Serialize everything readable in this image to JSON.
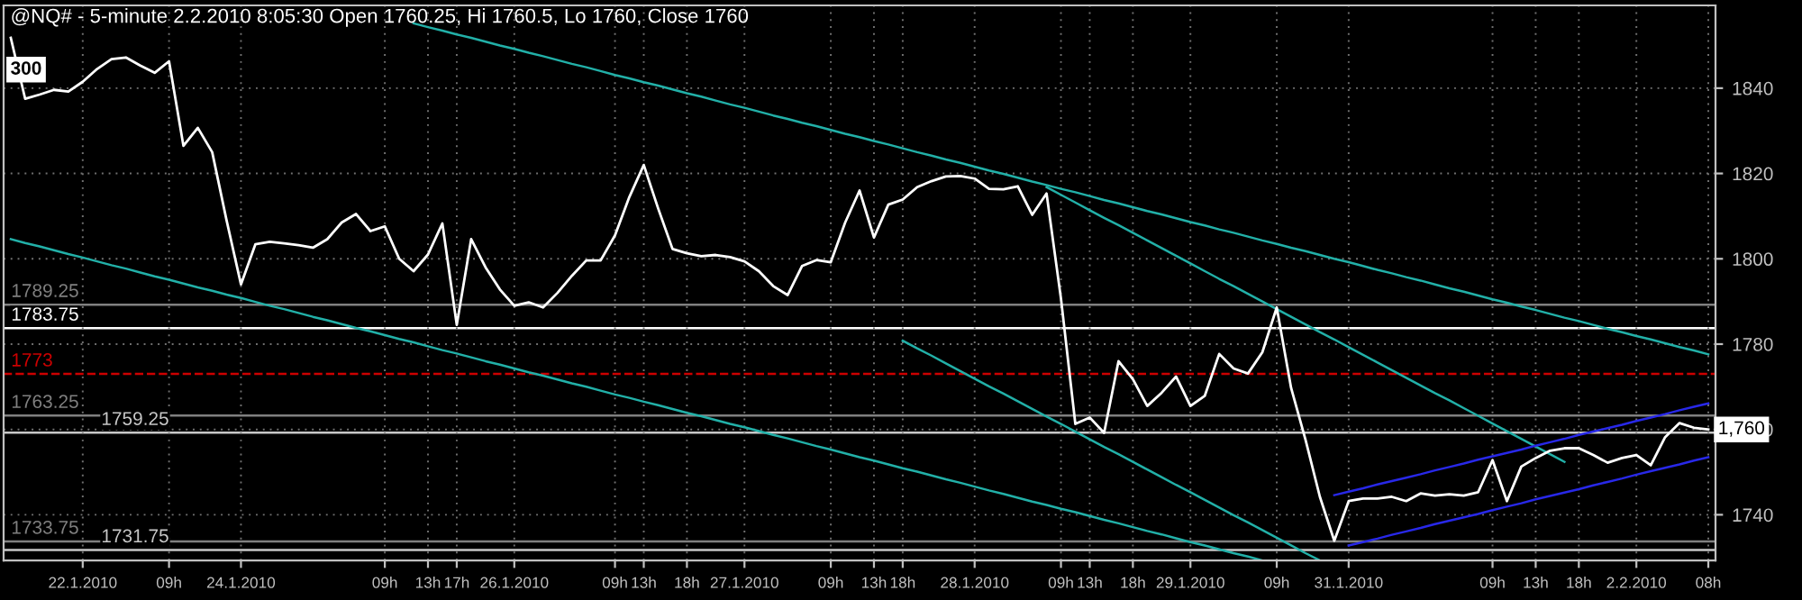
{
  "chart_data": {
    "type": "line",
    "title": "@NQ# - 5-minute 2.2.2010 8:05:30 Open 1760.25, Hi 1760.5, Lo 1760, Close 1760",
    "annotations": [
      "300",
      {
        "text": "1,760",
        "y": 1760
      }
    ],
    "categories": [
      null,
      null,
      null,
      null,
      null,
      "22.1.2010",
      null,
      null,
      null,
      null,
      null,
      "09h",
      null,
      null,
      null,
      null,
      "24.1.2010",
      null,
      null,
      null,
      null,
      null,
      null,
      null,
      null,
      null,
      "09h",
      null,
      null,
      "13h",
      null,
      "17h",
      null,
      null,
      null,
      "26.1.2010",
      null,
      null,
      null,
      null,
      null,
      null,
      "09h",
      null,
      "13h",
      null,
      null,
      "18h",
      null,
      null,
      null,
      "27.1.2010",
      null,
      null,
      null,
      null,
      null,
      "09h",
      null,
      null,
      "13h",
      null,
      "18h",
      null,
      null,
      null,
      null,
      "28.1.2010",
      null,
      null,
      null,
      null,
      null,
      "09h",
      null,
      "13h",
      null,
      null,
      "18h",
      null,
      null,
      null,
      "29.1.2010",
      null,
      null,
      null,
      null,
      null,
      "09h",
      null,
      null,
      null,
      null,
      "31.1.2010",
      null,
      null,
      null,
      null,
      null,
      null,
      null,
      null,
      null,
      "09h",
      null,
      null,
      "13h",
      null,
      null,
      "18h",
      null,
      null,
      null,
      "2.2.2010",
      null,
      null,
      null,
      null,
      "08h"
    ],
    "series": [
      {
        "color": "#ffffff",
        "values": [
          1851.8,
          1837.5,
          1838.5,
          1839.6,
          1839.2,
          1841.5,
          1844.5,
          1846.8,
          1847.2,
          1845.3,
          1843.6,
          1846.3,
          1826.5,
          1830.7,
          1825,
          1809,
          1794,
          1803.4,
          1804,
          1803.6,
          1803.2,
          1802.6,
          1804.6,
          1808.5,
          1810.5,
          1806.5,
          1807.6,
          1800,
          1797.1,
          1801,
          1808.3,
          1784.5,
          1804.6,
          1798,
          1792.8,
          1789,
          1789.8,
          1788.6,
          1792,
          1796,
          1799.6,
          1799.6,
          1805.5,
          1814.5,
          1822,
          1811.8,
          1802.3,
          1801.3,
          1800.6,
          1800.9,
          1800.4,
          1799.4,
          1797.1,
          1793.6,
          1791.5,
          1798.3,
          1799.7,
          1799.2,
          1808.5,
          1816,
          1805,
          1812.7,
          1813.9,
          1816.8,
          1818.2,
          1819.3,
          1819.4,
          1818.8,
          1816.4,
          1816.3,
          1817,
          1810.3,
          1815.3,
          1790.7,
          1761.3,
          1762.8,
          1759.2,
          1776,
          1771.8,
          1765.5,
          1768.6,
          1772.4,
          1765.5,
          1767.9,
          1777.7,
          1774.3,
          1773.1,
          1778.1,
          1788.6,
          1769.7,
          1757.6,
          1744.2,
          1733.9,
          1743.2,
          1743.8,
          1743.8,
          1744.2,
          1743.2,
          1745,
          1744.5,
          1744.8,
          1744.5,
          1745.3,
          1752.8,
          1743.2,
          1751.3,
          1753.3,
          1755,
          1755.6,
          1755.6,
          1754,
          1752.2,
          1753.3,
          1754,
          1751.6,
          1758.2,
          1761.5,
          1760.4,
          1760
        ]
      },
      {
        "color": "#22b0a8",
        "values": [
          null,
          null,
          null,
          null,
          null,
          null,
          null,
          null,
          null,
          null,
          null,
          null,
          null,
          null,
          null,
          null,
          null,
          null,
          null,
          null,
          null,
          null,
          null,
          null,
          null,
          null,
          null,
          null,
          1855.2,
          1854.3,
          1853.5,
          1852.6,
          1851.8,
          1850.9,
          1850.0,
          1849.2,
          1848.3,
          1847.5,
          1846.6,
          1845.7,
          1844.9,
          1844.0,
          1843.1,
          1842.3,
          1841.4,
          1840.6,
          1839.7,
          1838.8,
          1838.0,
          1837.1,
          1836.2,
          1835.4,
          1834.5,
          1833.6,
          1832.8,
          1831.9,
          1831.1,
          1830.2,
          1829.3,
          1828.5,
          1827.6,
          1826.8,
          1825.9,
          1825.0,
          1824.2,
          1823.3,
          1822.5,
          1821.6,
          1820.7,
          1819.9,
          1819.0,
          1818.1,
          1817.3,
          1816.4,
          1815.6,
          1814.7,
          1813.8,
          1813.0,
          1812.1,
          1811.2,
          1810.4,
          1809.5,
          1808.6,
          1807.8,
          1806.9,
          1806.1,
          1805.2,
          1804.3,
          1803.5,
          1802.6,
          1801.8,
          1800.9,
          1800.0,
          1799.2,
          1798.3,
          1797.4,
          1796.6,
          1795.7,
          1794.9,
          1794.0,
          1793.1,
          1792.3,
          1791.4,
          1790.5,
          1789.7,
          1788.8,
          1788.0,
          1787.1,
          1786.2,
          1785.4,
          1784.5,
          1783.6,
          1782.8,
          1781.9,
          1781.1,
          1780.2,
          1779.3,
          1778.5,
          1777.6
        ]
      },
      {
        "color": "#22b0a8",
        "values": [
          1804.6,
          1803.7,
          1802.9,
          1802.0,
          1801.1,
          1800.3,
          1799.4,
          1798.5,
          1797.7,
          1796.8,
          1795.9,
          1795.1,
          1794.2,
          1793.3,
          1792.5,
          1791.6,
          1790.8,
          1789.9,
          1789.0,
          1788.2,
          1787.3,
          1786.4,
          1785.6,
          1784.7,
          1783.8,
          1783.0,
          1782.1,
          1781.2,
          1780.4,
          1779.5,
          1778.6,
          1777.8,
          1776.9,
          1776.0,
          1775.2,
          1774.3,
          1773.4,
          1772.6,
          1771.7,
          1770.8,
          1770.0,
          1769.1,
          1768.2,
          1767.4,
          1766.5,
          1765.7,
          1764.8,
          1763.9,
          1763.1,
          1762.2,
          1761.3,
          1760.5,
          1759.6,
          1758.7,
          1757.9,
          1757.0,
          1756.1,
          1755.3,
          1754.4,
          1753.5,
          1752.7,
          1751.8,
          1750.9,
          1750.1,
          1749.2,
          1748.3,
          1747.5,
          1746.6,
          1745.7,
          1744.9,
          1744.0,
          1743.1,
          1742.3,
          1741.4,
          1740.6,
          1739.7,
          1738.8,
          1738.0,
          1737.1,
          1736.2,
          1735.4,
          1734.5,
          1733.6,
          1732.8,
          1731.9,
          1731.0,
          1730.2,
          1729.3,
          null,
          null,
          null,
          null,
          null,
          null,
          null,
          null,
          null,
          null,
          null,
          null,
          null,
          null,
          null,
          null,
          null,
          null,
          null,
          null,
          null,
          null,
          null,
          null,
          null,
          null,
          null,
          null,
          null,
          null,
          null
        ]
      },
      {
        "color": "#22b0a8",
        "values": [
          null,
          null,
          null,
          null,
          null,
          null,
          null,
          null,
          null,
          null,
          null,
          null,
          null,
          null,
          null,
          null,
          null,
          null,
          null,
          null,
          null,
          null,
          null,
          null,
          null,
          null,
          null,
          null,
          null,
          null,
          null,
          null,
          null,
          null,
          null,
          null,
          null,
          null,
          null,
          null,
          null,
          null,
          null,
          null,
          null,
          null,
          null,
          null,
          null,
          null,
          null,
          null,
          null,
          null,
          null,
          null,
          null,
          null,
          null,
          null,
          null,
          null,
          null,
          null,
          null,
          null,
          null,
          null,
          null,
          null,
          null,
          null,
          1816.8,
          1815.0,
          1813.2,
          1811.4,
          1809.6,
          1807.9,
          1806.1,
          1804.3,
          1802.5,
          1800.7,
          1798.9,
          1797.1,
          1795.3,
          1793.6,
          1791.8,
          1790.0,
          1788.2,
          1786.4,
          1784.6,
          1782.8,
          1781.1,
          1779.3,
          1777.5,
          1775.7,
          1773.9,
          1772.1,
          1770.3,
          1768.5,
          1766.8,
          1765.0,
          1763.2,
          1761.4,
          1759.6,
          1757.8,
          1756.0,
          1754.2,
          1752.4,
          null,
          null,
          null,
          null,
          null,
          null,
          null,
          null,
          null,
          null
        ]
      },
      {
        "color": "#22b0a8",
        "values": [
          null,
          null,
          null,
          null,
          null,
          null,
          null,
          null,
          null,
          null,
          null,
          null,
          null,
          null,
          null,
          null,
          null,
          null,
          null,
          null,
          null,
          null,
          null,
          null,
          null,
          null,
          null,
          null,
          null,
          null,
          null,
          null,
          null,
          null,
          null,
          null,
          null,
          null,
          null,
          null,
          null,
          null,
          null,
          null,
          null,
          null,
          null,
          null,
          null,
          null,
          null,
          null,
          null,
          null,
          null,
          null,
          null,
          null,
          null,
          null,
          null,
          null,
          1780.8,
          1779.0,
          1777.3,
          1775.5,
          1773.7,
          1771.9,
          1770.1,
          1768.4,
          1766.6,
          1764.8,
          1763.0,
          1761.3,
          1759.5,
          1757.7,
          1755.9,
          1754.2,
          1752.4,
          1750.6,
          1748.8,
          1747.0,
          1745.3,
          1743.5,
          1741.7,
          1739.9,
          1738.2,
          1736.4,
          1734.6,
          1732.8,
          1731.0,
          1729.3,
          null,
          null,
          null,
          null,
          null,
          null,
          null,
          null,
          null,
          null,
          null,
          null,
          null,
          null,
          null,
          null,
          null,
          null,
          null,
          null,
          null,
          null,
          null,
          null,
          null,
          null,
          null
        ]
      },
      {
        "color": "#2828e8",
        "values": [
          null,
          null,
          null,
          null,
          null,
          null,
          null,
          null,
          null,
          null,
          null,
          null,
          null,
          null,
          null,
          null,
          null,
          null,
          null,
          null,
          null,
          null,
          null,
          null,
          null,
          null,
          null,
          null,
          null,
          null,
          null,
          null,
          null,
          null,
          null,
          null,
          null,
          null,
          null,
          null,
          null,
          null,
          null,
          null,
          null,
          null,
          null,
          null,
          null,
          null,
          null,
          null,
          null,
          null,
          null,
          null,
          null,
          null,
          null,
          null,
          null,
          null,
          null,
          null,
          null,
          null,
          null,
          null,
          null,
          null,
          null,
          null,
          null,
          null,
          null,
          null,
          null,
          null,
          null,
          null,
          null,
          null,
          null,
          null,
          null,
          null,
          null,
          null,
          null,
          null,
          null,
          null,
          1744.6,
          1745.4,
          1746.2,
          1747.1,
          1747.9,
          1748.7,
          1749.5,
          1750.4,
          1751.2,
          1752.0,
          1752.9,
          1753.7,
          1754.5,
          1755.3,
          1756.2,
          1757.0,
          1757.8,
          1758.7,
          1759.5,
          1760.3,
          1761.1,
          1762.0,
          1762.8,
          1763.6,
          1764.5,
          1765.3,
          1766.1
        ]
      },
      {
        "color": "#2828e8",
        "values": [
          null,
          null,
          null,
          null,
          null,
          null,
          null,
          null,
          null,
          null,
          null,
          null,
          null,
          null,
          null,
          null,
          null,
          null,
          null,
          null,
          null,
          null,
          null,
          null,
          null,
          null,
          null,
          null,
          null,
          null,
          null,
          null,
          null,
          null,
          null,
          null,
          null,
          null,
          null,
          null,
          null,
          null,
          null,
          null,
          null,
          null,
          null,
          null,
          null,
          null,
          null,
          null,
          null,
          null,
          null,
          null,
          null,
          null,
          null,
          null,
          null,
          null,
          null,
          null,
          null,
          null,
          null,
          null,
          null,
          null,
          null,
          null,
          null,
          null,
          null,
          null,
          null,
          null,
          null,
          null,
          null,
          null,
          null,
          null,
          null,
          null,
          null,
          null,
          null,
          null,
          null,
          null,
          null,
          1732.8,
          1733.6,
          1734.4,
          1735.3,
          1736.1,
          1736.9,
          1737.8,
          1738.6,
          1739.4,
          1740.2,
          1741.1,
          1741.9,
          1742.7,
          1743.6,
          1744.4,
          1745.2,
          1746.0,
          1746.9,
          1747.7,
          1748.5,
          1749.4,
          1750.2,
          1751.0,
          1751.8,
          1752.7,
          1753.5
        ]
      }
    ],
    "ref_lines": [
      {
        "axis": "y",
        "value": 1789.25,
        "label": "1789.25",
        "color": "#808080"
      },
      {
        "axis": "y",
        "value": 1783.75,
        "label": "1783.75",
        "color": "#ffffff"
      },
      {
        "axis": "y",
        "value": 1773,
        "label": "1773",
        "color": "#cc0000",
        "line_style": "dashed"
      },
      {
        "axis": "y",
        "value": 1763.25,
        "label": "1763.25",
        "color": "#808080"
      },
      {
        "axis": "y",
        "value": 1759.25,
        "label": "1759.25",
        "color": "#c8c8c8"
      },
      {
        "axis": "y",
        "value": 1733.75,
        "label": "1733.75",
        "color": "#808080"
      },
      {
        "axis": "y",
        "value": 1731.75,
        "label": "1731.75",
        "color": "#c8c8c8"
      }
    ],
    "ylim": [
      1729.3,
      1859.4
    ],
    "yticks": [
      1740,
      1760,
      1780,
      1800,
      1820,
      1840
    ],
    "grid": true,
    "marker": "none",
    "line_style": "solid"
  }
}
